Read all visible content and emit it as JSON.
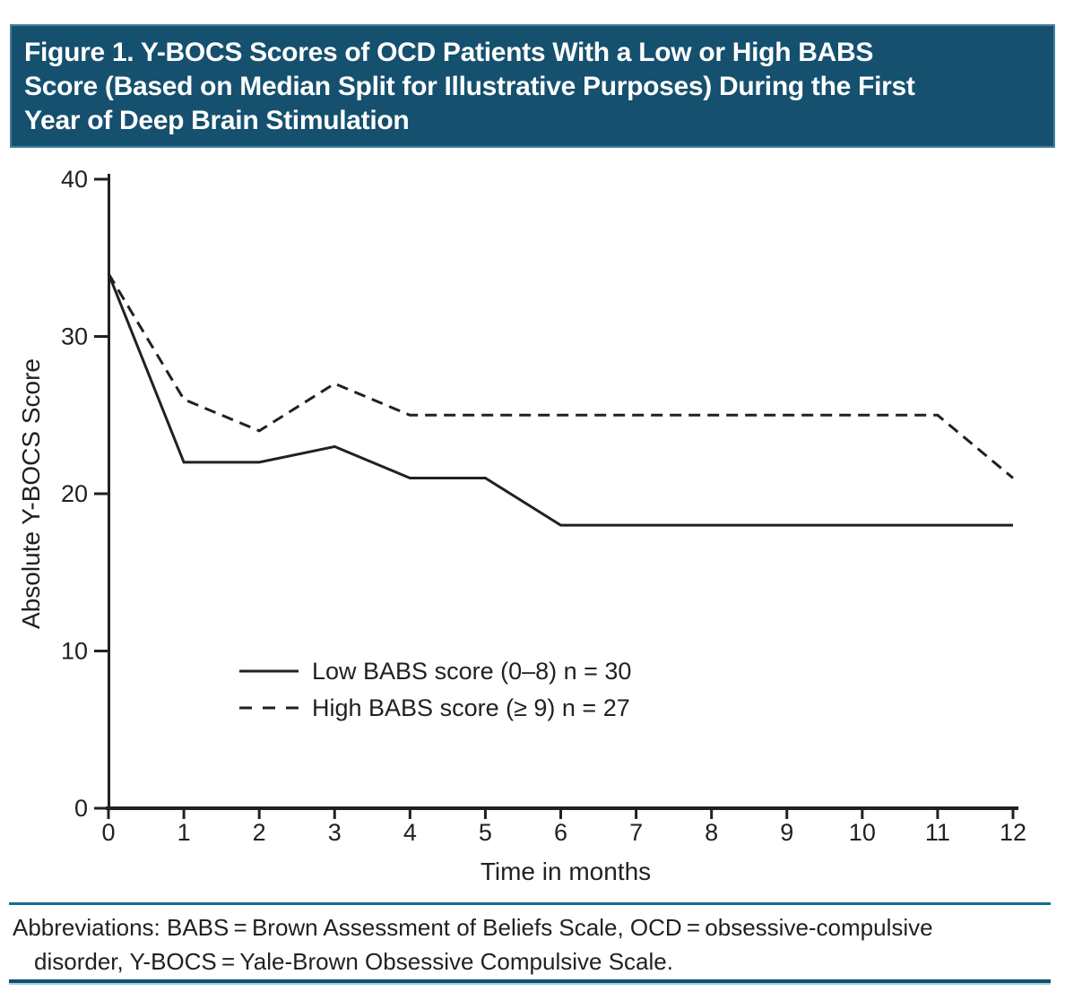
{
  "figure": {
    "title_lines": [
      "Figure 1. Y-BOCS Scores of OCD Patients With a Low or High BABS",
      "Score (Based on Median Split for Illustrative Purposes) During the First",
      "Year of Deep Brain Stimulation"
    ],
    "footnote_lines": [
      "Abbreviations: BABS = Brown Assessment of Beliefs Scale, OCD = obsessive-compulsive",
      "disorder, Y-BOCS = Yale-Brown Obsessive Compulsive Scale."
    ]
  },
  "colors": {
    "title_bar_bg": "#15506e",
    "title_bar_border": "#47809f",
    "title_text": "#ffffff",
    "line_color": "#231f20",
    "rule_top": "#0f6f94",
    "rule_bottom": "#14506e",
    "rule_bottom_edge": "#a9cbdc",
    "page_bg": "#ffffff"
  },
  "chart_data": {
    "type": "line",
    "title": "",
    "xlabel": "Time in months",
    "ylabel": "Absolute Y-BOCS Score",
    "xlim": [
      0,
      12
    ],
    "ylim": [
      0,
      40
    ],
    "x_ticks": [
      0,
      1,
      2,
      3,
      4,
      5,
      6,
      7,
      8,
      9,
      10,
      11,
      12
    ],
    "y_ticks": [
      0,
      10,
      20,
      30,
      40
    ],
    "grid": false,
    "legend_position": "inside-lower-left",
    "x": [
      0,
      1,
      2,
      3,
      4,
      5,
      6,
      7,
      8,
      9,
      10,
      11,
      12
    ],
    "series": [
      {
        "name": "Low BABS score (0–8) n = 30",
        "line_style": "solid",
        "values": [
          34,
          22,
          22,
          23,
          21,
          21,
          18,
          18,
          18,
          18,
          18,
          18,
          18
        ]
      },
      {
        "name": "High BABS score (≥ 9) n = 27",
        "line_style": "dashed",
        "values": [
          34,
          26,
          24,
          27,
          25,
          25,
          25,
          25,
          25,
          25,
          25,
          25,
          21
        ]
      }
    ]
  }
}
